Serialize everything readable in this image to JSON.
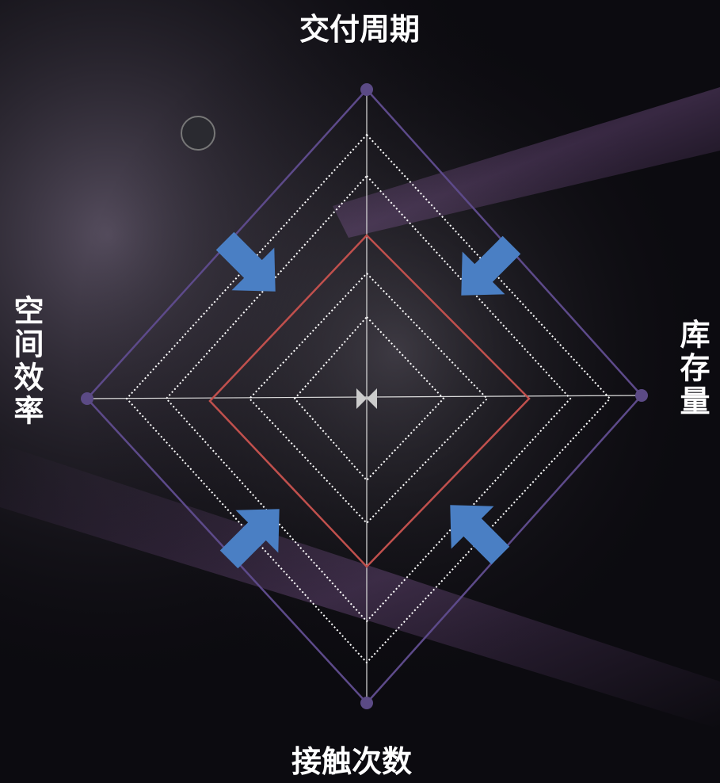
{
  "labels": {
    "top": "交付周期",
    "right": "库存量",
    "bottom": "接触次数",
    "left": "空间效率"
  }
}
